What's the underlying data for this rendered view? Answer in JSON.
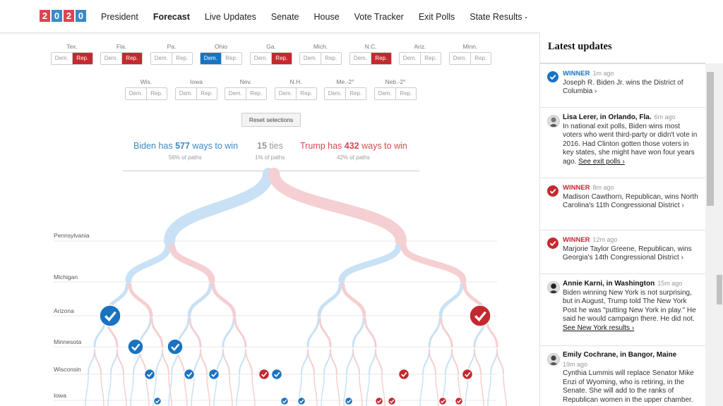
{
  "header": {
    "logo_digits": [
      "2",
      "0",
      "2",
      "0"
    ],
    "logo_colors": [
      "#d9474f",
      "#3a89c9",
      "#d9474f",
      "#3a89c9"
    ],
    "nav": [
      {
        "label": "President"
      },
      {
        "label": "Forecast"
      },
      {
        "label": "Live Updates"
      },
      {
        "label": "Senate"
      },
      {
        "label": "House"
      },
      {
        "label": "Vote Tracker"
      },
      {
        "label": "Exit Polls"
      },
      {
        "label": "State Results"
      }
    ]
  },
  "selector": {
    "dem_label": "Dem.",
    "rep_label": "Rep.",
    "states_row1": [
      {
        "name": "Tex.",
        "selected": "rep"
      },
      {
        "name": "Fla.",
        "selected": "rep"
      },
      {
        "name": "Pa.",
        "selected": ""
      },
      {
        "name": "Ohio",
        "selected": "dem"
      },
      {
        "name": "Ga.",
        "selected": "rep"
      },
      {
        "name": "Mich.",
        "selected": ""
      },
      {
        "name": "N.C.",
        "selected": "rep"
      },
      {
        "name": "Ariz.",
        "selected": ""
      },
      {
        "name": "Minn.",
        "selected": ""
      }
    ],
    "states_row2": [
      {
        "name": "Wis.",
        "selected": ""
      },
      {
        "name": "Iowa",
        "selected": ""
      },
      {
        "name": "Nev.",
        "selected": ""
      },
      {
        "name": "N.H.",
        "selected": ""
      },
      {
        "name": "Me.-2°",
        "selected": ""
      },
      {
        "name": "Neb.-2°",
        "selected": ""
      }
    ],
    "reset_label": "Reset selections"
  },
  "summary": {
    "biden_prefix": "Biden has ",
    "biden_count": "577",
    "biden_suffix": " ways to win",
    "biden_pct": "56% of paths",
    "ties_count": "15",
    "ties_suffix": " ties",
    "ties_pct": "1% of paths",
    "trump_prefix": "Trump has ",
    "trump_count": "432",
    "trump_suffix": " ways to win",
    "trump_pct": "42% of paths"
  },
  "tree": {
    "levels": [
      "Pennsylvania",
      "Michigan",
      "Arizona",
      "Minnesota",
      "Wisconsin",
      "Iowa"
    ],
    "dem_color": "#1a73c1",
    "rep_color": "#c4292f"
  },
  "sidebar": {
    "title": "Latest updates",
    "items": [
      {
        "type": "winner",
        "party": "dem",
        "winner_label": "WINNER",
        "time": "1m ago",
        "text": "Joseph R. Biden Jr. wins the District of Columbia ›"
      },
      {
        "type": "post",
        "author": "Lisa Lerer, in Orlando, Fla.",
        "time": "6m ago",
        "text": "In national exit polls, Biden wins most voters who went third-party or didn't vote in 2016. Had Clinton gotten those voters in key states, she might have won four years ago.",
        "link": "See exit polls ›"
      },
      {
        "type": "winner",
        "party": "rep",
        "winner_label": "WINNER",
        "time": "8m ago",
        "text": "Madison Cawthorn, Republican, wins North Carolina's 11th Congressional District ›"
      },
      {
        "type": "winner",
        "party": "rep",
        "winner_label": "WINNER",
        "time": "12m ago",
        "text": "Marjorie Taylor Greene, Republican, wins Georgia's 14th Congressional District ›"
      },
      {
        "type": "post",
        "author": "Annie Karni, in Washington",
        "time": "15m ago",
        "text": "Biden winning New York is not surprising, but in August, Trump told The New York Post he was \"putting New York in play.\" He said he would campaign there. He did not.",
        "link": "See New York results ›"
      },
      {
        "type": "post",
        "author": "Emily Cochrane, in Bangor, Maine",
        "time": "19m ago",
        "text": "Cynthia Lummis will replace Senator Mike Enzi of Wyoming, who is retiring, in the Senate. She will add to the ranks of Republican women in the upper chamber.",
        "link": ""
      }
    ]
  }
}
